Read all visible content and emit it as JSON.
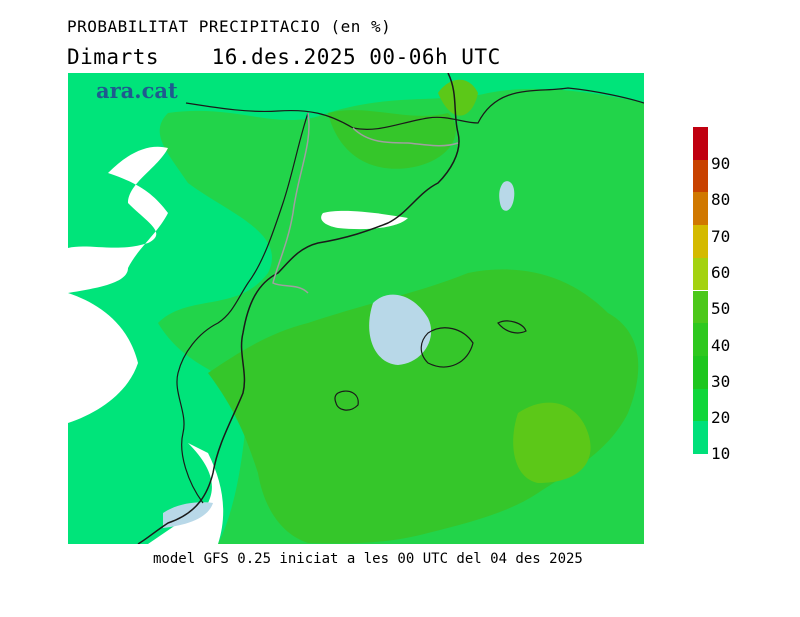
{
  "title": "PROBABILITAT PRECIPITACIO (en %)",
  "subtitle": "Dimarts    16.des.2025 00-06h UTC",
  "brand": "ara.cat",
  "footer": "model GFS 0.25 iniciat a les 00 UTC del 04 des 2025",
  "legend": {
    "labels": [
      "10",
      "20",
      "30",
      "40",
      "50",
      "60",
      "70",
      "80",
      "90"
    ],
    "colors": [
      "#00e07a",
      "#10d63a",
      "#1ec61e",
      "#2ec81e",
      "#4cc81a",
      "#a4d210",
      "#d4ba00",
      "#d07800",
      "#c84200",
      "#c00010"
    ]
  },
  "colors": {
    "background_low": "#00e47a",
    "band_20": "#22d44a",
    "band_30": "#35c62a",
    "band_40": "#5cc818",
    "lake": "#b8d8e8",
    "border": "#a0a0a0",
    "coast": "#1a1a1a"
  }
}
